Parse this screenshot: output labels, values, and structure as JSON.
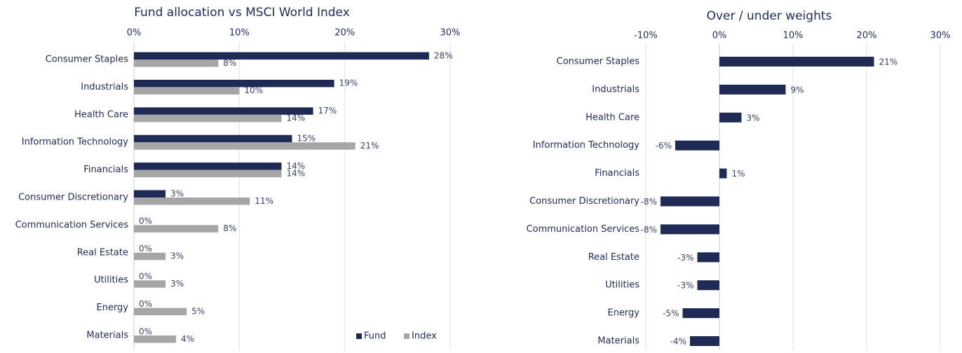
{
  "chart_data": [
    {
      "type": "bar",
      "orientation": "horizontal",
      "title": "Fund allocation vs MSCI World Index",
      "categories": [
        "Consumer Staples",
        "Industrials",
        "Health Care",
        "Information Technology",
        "Financials",
        "Consumer Discretionary",
        "Communication Services",
        "Real Estate",
        "Utilities",
        "Energy",
        "Materials"
      ],
      "series": [
        {
          "name": "Fund",
          "color": "#1f2a55",
          "values": [
            28,
            19,
            17,
            15,
            14,
            3,
            0,
            0,
            0,
            0,
            0
          ],
          "value_labels": [
            "28%",
            "19%",
            "17%",
            "15%",
            "14%",
            "3%",
            "0%",
            "0%",
            "0%",
            "0%",
            "0%"
          ]
        },
        {
          "name": "Index",
          "color": "#a6a6a6",
          "values": [
            8,
            10,
            14,
            21,
            14,
            11,
            8,
            3,
            3,
            5,
            4
          ],
          "value_labels": [
            "8%",
            "10%",
            "14%",
            "21%",
            "14%",
            "11%",
            "8%",
            "3%",
            "3%",
            "5%",
            "4%"
          ]
        }
      ],
      "xlim": [
        0,
        30
      ],
      "xticks": [
        {
          "value": 0,
          "label": "0%"
        },
        {
          "value": 10,
          "label": "10%"
        },
        {
          "value": 20,
          "label": "20%"
        },
        {
          "value": 30,
          "label": "30%"
        }
      ],
      "grid": true,
      "legend": "bottom-right"
    },
    {
      "type": "bar",
      "orientation": "horizontal",
      "title": "Over / under weights",
      "categories": [
        "Consumer Staples",
        "Industrials",
        "Health Care",
        "Information Technology",
        "Financials",
        "Consumer Discretionary",
        "Communication Services",
        "Real Estate",
        "Utilities",
        "Energy",
        "Materials"
      ],
      "values": [
        21,
        9,
        3,
        -6,
        1,
        -8,
        -8,
        -3,
        -3,
        -5,
        -4
      ],
      "value_labels": [
        "21%",
        "9%",
        "3%",
        "-6%",
        "1%",
        "-8%",
        "-8%",
        "-3%",
        "-3%",
        "-5%",
        "-4%"
      ],
      "color": "#1f2a55",
      "xlim": [
        -10,
        30
      ],
      "xticks": [
        {
          "value": -10,
          "label": "-10%"
        },
        {
          "value": 0,
          "label": "0%"
        },
        {
          "value": 10,
          "label": "10%"
        },
        {
          "value": 20,
          "label": "20%"
        },
        {
          "value": 30,
          "label": "30%"
        }
      ],
      "grid": true
    }
  ]
}
